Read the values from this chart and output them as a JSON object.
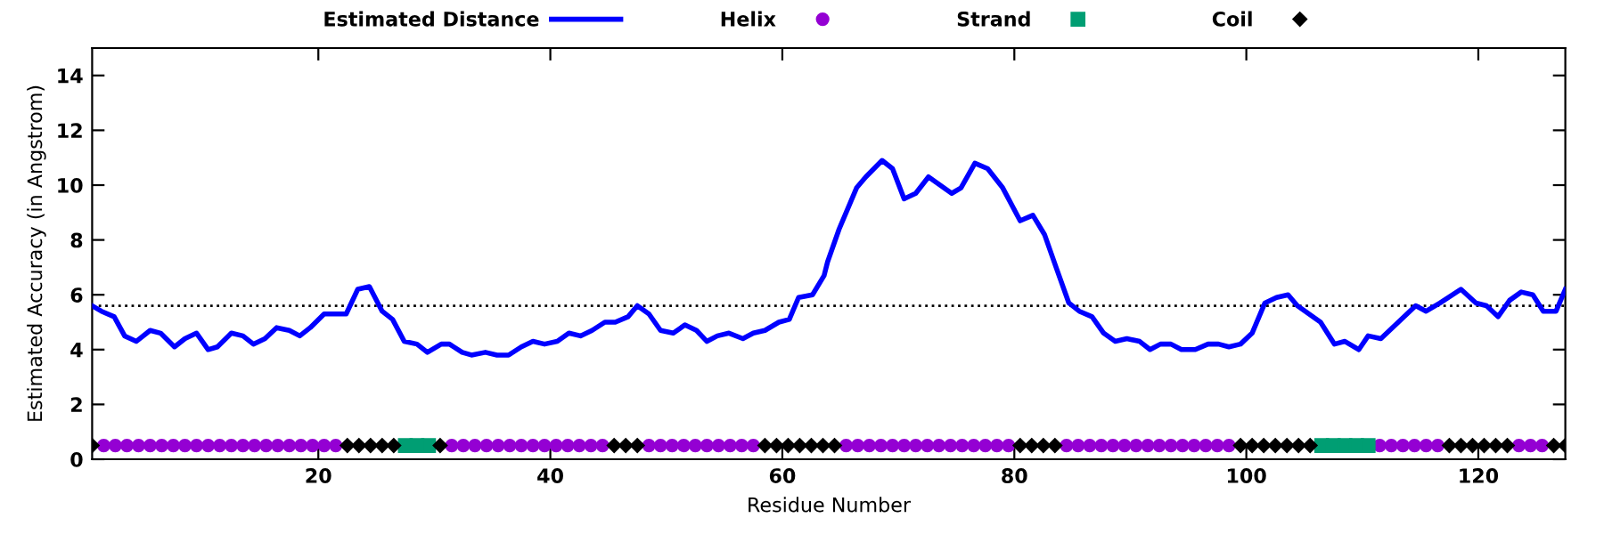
{
  "chart_data": {
    "type": "line",
    "xlabel": "Residue Number",
    "ylabel": "Estimated Accuracy (in Angstrom)",
    "xlim": [
      0.5,
      127.5
    ],
    "ylim": [
      0,
      15
    ],
    "xticks": [
      20,
      40,
      60,
      80,
      100,
      120
    ],
    "yticks": [
      0,
      2,
      4,
      6,
      8,
      10,
      12,
      14
    ],
    "grid": false,
    "legend": "top",
    "ref_lines": [
      {
        "axis": "y",
        "value": 5.6,
        "color": "#000000",
        "line_style": "dotted"
      }
    ],
    "series": [
      {
        "name": "Estimated Distance",
        "color": "#0000ff",
        "marker": "none",
        "line_style": "solid",
        "x": [
          0.5,
          1.3,
          2.4,
          3.3,
          4.3,
          5.5,
          6.4,
          7.6,
          8.5,
          9.5,
          10.5,
          11.3,
          12.5,
          13.5,
          14.4,
          15.4,
          16.4,
          17.5,
          18.4,
          19.3,
          20.5,
          21.3,
          22.4,
          23.4,
          24.4,
          25.5,
          26.4,
          27.4,
          28.5,
          29.4,
          30.6,
          31.3,
          32.4,
          33.2,
          34.4,
          35.4,
          36.4,
          37.5,
          38.5,
          39.5,
          40.6,
          41.6,
          42.6,
          43.6,
          44.7,
          45.6,
          46.7,
          47.5,
          48.5,
          49.5,
          50.6,
          51.6,
          52.6,
          53.5,
          54.4,
          55.4,
          56.6,
          57.5,
          58.5,
          59.7,
          60.6,
          61.4,
          62.6,
          63.6,
          63.9,
          64.9,
          66.4,
          67.2,
          68.6,
          69.5,
          70.5,
          71.5,
          72.6,
          73.6,
          74.6,
          75.4,
          76.6,
          77.7,
          79.0,
          80.5,
          81.6,
          82.6,
          83.6,
          84.7,
          85.6,
          86.7,
          87.7,
          88.7,
          89.7,
          90.8,
          91.7,
          92.6,
          93.5,
          94.4,
          95.6,
          96.7,
          97.6,
          98.5,
          99.5,
          100.5,
          101.6,
          102.6,
          103.6,
          104.4,
          106.4,
          107.6,
          108.5,
          109.7,
          110.5,
          111.6,
          113.1,
          114.6,
          115.5,
          116.7,
          118.5,
          119.8,
          120.7,
          121.7,
          122.7,
          123.7,
          124.7,
          125.6,
          126.7,
          127.5
        ],
        "values": [
          5.6,
          5.4,
          5.2,
          4.5,
          4.3,
          4.7,
          4.6,
          4.1,
          4.4,
          4.6,
          4.0,
          4.1,
          4.6,
          4.5,
          4.2,
          4.4,
          4.8,
          4.7,
          4.5,
          4.8,
          5.3,
          5.3,
          5.3,
          6.2,
          6.3,
          5.4,
          5.1,
          4.3,
          4.2,
          3.9,
          4.2,
          4.2,
          3.9,
          3.8,
          3.9,
          3.8,
          3.8,
          4.1,
          4.3,
          4.2,
          4.3,
          4.6,
          4.5,
          4.7,
          5.0,
          5.0,
          5.2,
          5.6,
          5.3,
          4.7,
          4.6,
          4.9,
          4.7,
          4.3,
          4.5,
          4.6,
          4.4,
          4.6,
          4.7,
          5.0,
          5.1,
          5.9,
          6.0,
          6.7,
          7.2,
          8.4,
          9.9,
          10.3,
          10.9,
          10.6,
          9.5,
          9.7,
          10.3,
          10.0,
          9.7,
          9.9,
          10.8,
          10.6,
          9.9,
          8.7,
          8.9,
          8.2,
          7.0,
          5.7,
          5.4,
          5.2,
          4.6,
          4.3,
          4.4,
          4.3,
          4.0,
          4.2,
          4.2,
          4.0,
          4.0,
          4.2,
          4.2,
          4.1,
          4.2,
          4.6,
          5.7,
          5.9,
          6.0,
          5.6,
          5.0,
          4.2,
          4.3,
          4.0,
          4.5,
          4.4,
          5.0,
          5.6,
          5.4,
          5.7,
          6.2,
          5.7,
          5.6,
          5.2,
          5.8,
          6.1,
          6.0,
          5.4,
          5.4,
          6.2
        ]
      },
      {
        "name": "Helix",
        "type": "scatter",
        "color": "#9400d3",
        "marker": "circle",
        "x": [
          1.5,
          2.5,
          3.5,
          4.5,
          5.5,
          6.5,
          7.5,
          8.5,
          9.5,
          10.5,
          11.5,
          12.5,
          13.5,
          14.5,
          15.5,
          16.5,
          17.5,
          18.5,
          19.5,
          20.5,
          21.5,
          31.5,
          32.5,
          33.5,
          34.5,
          35.5,
          36.5,
          37.5,
          38.5,
          39.5,
          40.5,
          41.5,
          42.5,
          43.5,
          44.5,
          48.5,
          49.5,
          50.5,
          51.5,
          52.5,
          53.5,
          54.5,
          55.5,
          56.5,
          57.5,
          65.5,
          66.5,
          67.5,
          68.5,
          69.5,
          70.5,
          71.5,
          72.5,
          73.5,
          74.5,
          75.5,
          76.5,
          77.5,
          78.5,
          79.5,
          84.5,
          85.5,
          86.5,
          87.5,
          88.5,
          89.5,
          90.5,
          91.5,
          92.5,
          93.5,
          94.5,
          95.5,
          96.5,
          97.5,
          98.5,
          111.5,
          112.5,
          113.5,
          114.5,
          115.5,
          116.5,
          123.5,
          124.5,
          125.5
        ],
        "values": [
          0.5,
          0.5,
          0.5,
          0.5,
          0.5,
          0.5,
          0.5,
          0.5,
          0.5,
          0.5,
          0.5,
          0.5,
          0.5,
          0.5,
          0.5,
          0.5,
          0.5,
          0.5,
          0.5,
          0.5,
          0.5,
          0.5,
          0.5,
          0.5,
          0.5,
          0.5,
          0.5,
          0.5,
          0.5,
          0.5,
          0.5,
          0.5,
          0.5,
          0.5,
          0.5,
          0.5,
          0.5,
          0.5,
          0.5,
          0.5,
          0.5,
          0.5,
          0.5,
          0.5,
          0.5,
          0.5,
          0.5,
          0.5,
          0.5,
          0.5,
          0.5,
          0.5,
          0.5,
          0.5,
          0.5,
          0.5,
          0.5,
          0.5,
          0.5,
          0.5,
          0.5,
          0.5,
          0.5,
          0.5,
          0.5,
          0.5,
          0.5,
          0.5,
          0.5,
          0.5,
          0.5,
          0.5,
          0.5,
          0.5,
          0.5,
          0.5,
          0.5,
          0.5,
          0.5,
          0.5,
          0.5,
          0.5,
          0.5,
          0.5
        ]
      },
      {
        "name": "Strand",
        "type": "scatter",
        "color": "#009e73",
        "marker": "square",
        "x": [
          27.5,
          28.5,
          29.5,
          106.5,
          107.5,
          108.5,
          109.5,
          110.5
        ],
        "values": [
          0.5,
          0.5,
          0.5,
          0.5,
          0.5,
          0.5,
          0.5,
          0.5
        ]
      },
      {
        "name": "Coil",
        "type": "scatter",
        "color": "#000000",
        "marker": "diamond",
        "x": [
          0.5,
          22.5,
          23.5,
          24.5,
          25.5,
          26.5,
          30.5,
          45.5,
          46.5,
          47.5,
          58.5,
          59.5,
          60.5,
          61.5,
          62.5,
          63.5,
          64.5,
          80.5,
          81.5,
          82.5,
          83.5,
          99.5,
          100.5,
          101.5,
          102.5,
          103.5,
          104.5,
          105.5,
          117.5,
          118.5,
          119.5,
          120.5,
          121.5,
          122.5,
          126.5,
          127.5
        ],
        "values": [
          0.5,
          0.5,
          0.5,
          0.5,
          0.5,
          0.5,
          0.5,
          0.5,
          0.5,
          0.5,
          0.5,
          0.5,
          0.5,
          0.5,
          0.5,
          0.5,
          0.5,
          0.5,
          0.5,
          0.5,
          0.5,
          0.5,
          0.5,
          0.5,
          0.5,
          0.5,
          0.5,
          0.5,
          0.5,
          0.5,
          0.5,
          0.5,
          0.5,
          0.5,
          0.5,
          0.5
        ]
      }
    ]
  }
}
